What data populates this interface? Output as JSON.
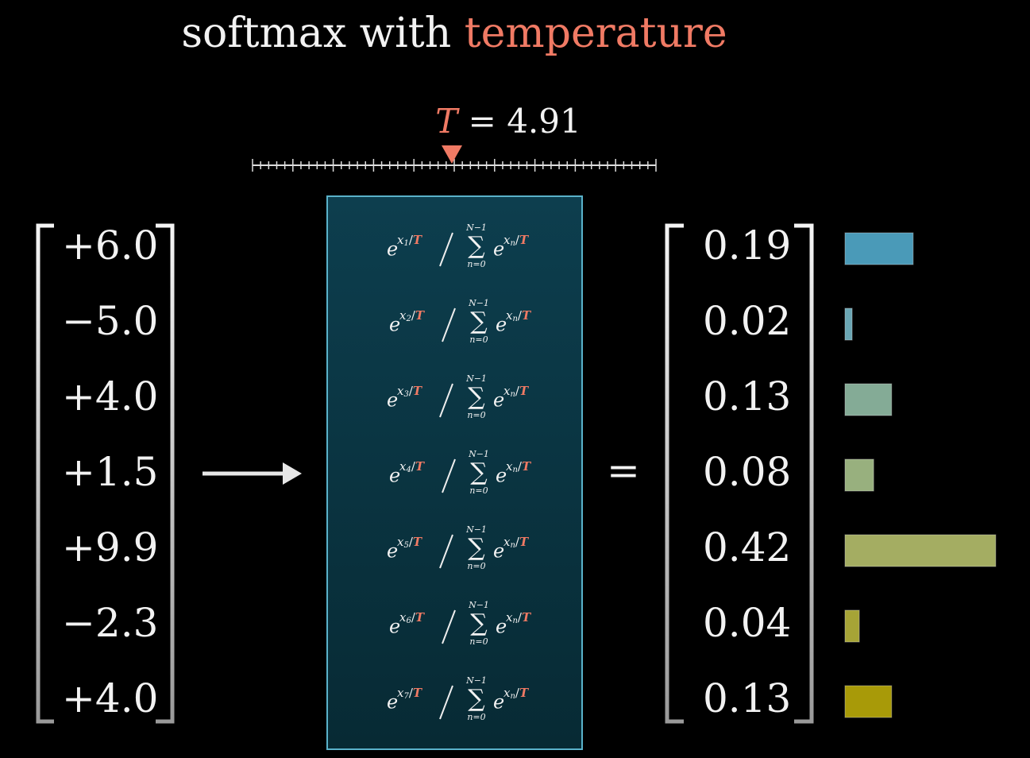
{
  "title": {
    "plain": "softmax with",
    "highlight": "temperature"
  },
  "temperature": {
    "symbol": "T",
    "equals": "=",
    "value": 4.91
  },
  "formula": {
    "base": "e",
    "var": "x",
    "slash": "/",
    "T": "T",
    "sum": "∑",
    "upper": "N−1",
    "lower": "n=0",
    "sum_index": "n"
  },
  "equals_sign": "=",
  "rows": [
    {
      "input": "+6.0",
      "index": "1",
      "output": 0.19,
      "color": "#4a9ab8"
    },
    {
      "input": "−5.0",
      "index": "2",
      "output": 0.02,
      "color": "#6aa6b4"
    },
    {
      "input": "+4.0",
      "index": "3",
      "output": 0.13,
      "color": "#84ab96"
    },
    {
      "input": "+1.5",
      "index": "4",
      "output": 0.08,
      "color": "#98b07e"
    },
    {
      "input": "+9.9",
      "index": "5",
      "output": 0.42,
      "color": "#a4ad62"
    },
    {
      "input": "−2.3",
      "index": "6",
      "output": 0.04,
      "color": "#a6a436"
    },
    {
      "input": "+4.0",
      "index": "7",
      "output": 0.13,
      "color": "#a89a08"
    }
  ]
}
